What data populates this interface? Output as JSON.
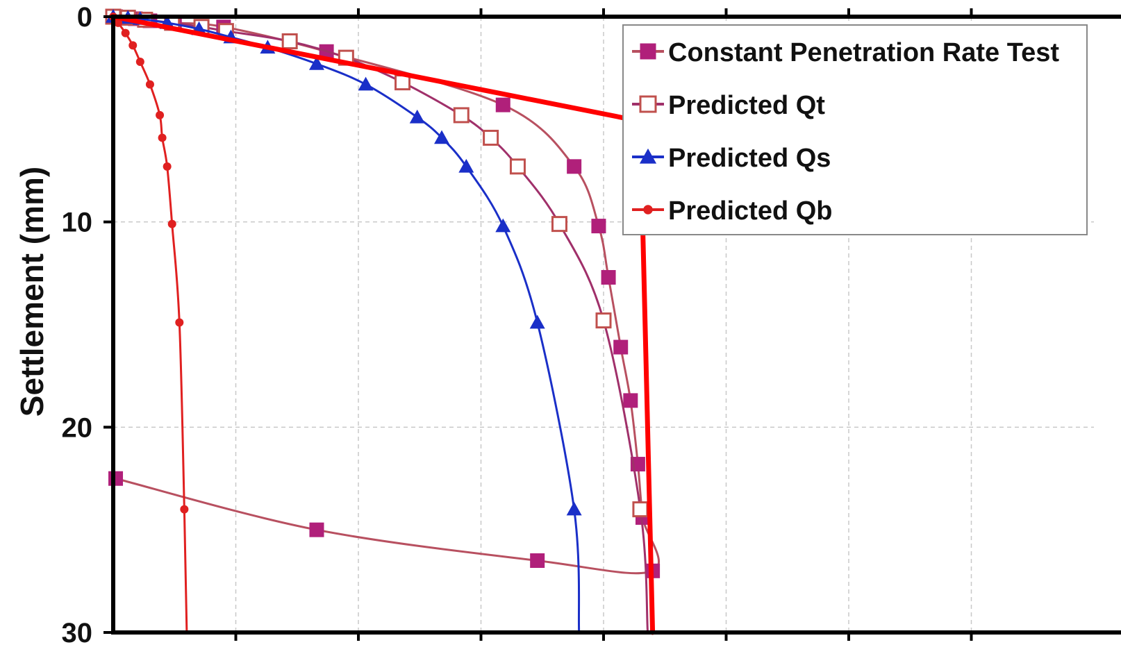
{
  "chart_data": {
    "type": "line",
    "title": "",
    "xlabel": "",
    "ylabel": "Settlement (mm)",
    "xlim": [
      0,
      4
    ],
    "ylim": [
      0,
      30
    ],
    "y_inverted": true,
    "y_ticks": [
      0,
      10,
      20,
      30
    ],
    "x_gridlines": [
      0.5,
      1,
      1.5,
      2,
      2.5,
      3,
      3.5
    ],
    "grid": true,
    "legend_position": "top-right",
    "series": [
      {
        "name": "Constant Penetration Rate Test",
        "color": "#b0207a",
        "line_color": "#b85060",
        "marker": "square-filled",
        "points": [
          [
            0.01,
            0
          ],
          [
            0.04,
            0.05
          ],
          [
            0.09,
            0.1
          ],
          [
            0.15,
            0.2
          ],
          [
            0.25,
            0.3
          ],
          [
            0.45,
            0.5
          ],
          [
            0.87,
            1.7
          ],
          [
            1.59,
            4.3
          ],
          [
            1.88,
            7.3
          ],
          [
            1.98,
            10.2
          ],
          [
            2.02,
            12.7
          ],
          [
            2.07,
            16.1
          ],
          [
            2.11,
            18.7
          ],
          [
            2.14,
            21.8
          ],
          [
            2.16,
            24.4
          ],
          [
            2.2,
            27.0
          ],
          [
            1.73,
            26.5
          ],
          [
            0.83,
            25.0
          ],
          [
            0.01,
            22.5
          ]
        ]
      },
      {
        "name": "Predicted Qt",
        "color": "#c0504d",
        "line_color": "#a0306a",
        "marker": "square-open",
        "points": [
          [
            0,
            0
          ],
          [
            0.06,
            0.05
          ],
          [
            0.13,
            0.15
          ],
          [
            0.24,
            0.3
          ],
          [
            0.36,
            0.5
          ],
          [
            0.46,
            0.7
          ],
          [
            0.72,
            1.2
          ],
          [
            0.95,
            2.0
          ],
          [
            1.18,
            3.2
          ],
          [
            1.42,
            4.8
          ],
          [
            1.54,
            5.9
          ],
          [
            1.65,
            7.3
          ],
          [
            1.82,
            10.1
          ],
          [
            2.0,
            14.8
          ],
          [
            2.15,
            24.0
          ],
          [
            2.18,
            30
          ]
        ]
      },
      {
        "name": "Predicted Qs",
        "color": "#1a2fc8",
        "line_color": "#1a2fc8",
        "marker": "triangle",
        "points": [
          [
            0,
            0
          ],
          [
            0.06,
            0.05
          ],
          [
            0.11,
            0.1
          ],
          [
            0.22,
            0.3
          ],
          [
            0.35,
            0.6
          ],
          [
            0.48,
            1.0
          ],
          [
            0.63,
            1.5
          ],
          [
            0.83,
            2.3
          ],
          [
            1.03,
            3.3
          ],
          [
            1.24,
            4.9
          ],
          [
            1.34,
            5.9
          ],
          [
            1.44,
            7.3
          ],
          [
            1.59,
            10.2
          ],
          [
            1.73,
            14.9
          ],
          [
            1.88,
            24.0
          ],
          [
            1.9,
            30
          ]
        ]
      },
      {
        "name": "Predicted Qb",
        "color": "#e02020",
        "line_color": "#e02020",
        "marker": "circle",
        "points": [
          [
            0,
            0
          ],
          [
            0.02,
            0.3
          ],
          [
            0.05,
            0.8
          ],
          [
            0.08,
            1.4
          ],
          [
            0.11,
            2.2
          ],
          [
            0.15,
            3.3
          ],
          [
            0.19,
            4.8
          ],
          [
            0.2,
            5.9
          ],
          [
            0.22,
            7.3
          ],
          [
            0.24,
            10.1
          ],
          [
            0.27,
            14.9
          ],
          [
            0.29,
            24.0
          ],
          [
            0.3,
            30
          ]
        ]
      }
    ],
    "annotation_lines": {
      "color": "#ff0000",
      "lines": [
        [
          [
            0,
            0
          ],
          [
            3.42,
            8.1
          ]
        ],
        [
          [
            2.15,
            5.4
          ],
          [
            2.2,
            30
          ]
        ]
      ]
    }
  }
}
